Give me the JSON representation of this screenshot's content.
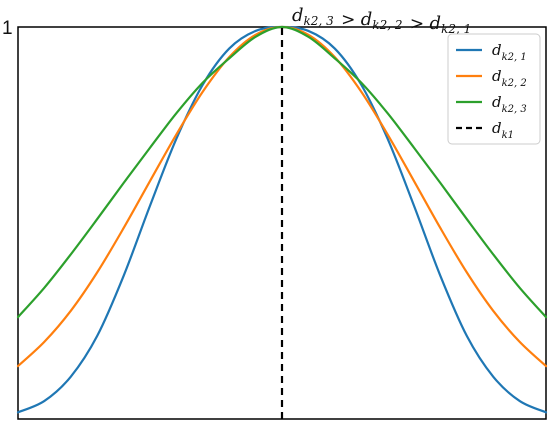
{
  "chart_data": {
    "type": "line",
    "title": "",
    "xlabel": "",
    "ylabel": "",
    "xlim": [
      -1,
      1
    ],
    "ylim": [
      0,
      1
    ],
    "x_ticks": [],
    "y_ticks": [
      {
        "value": 1,
        "label": "1"
      }
    ],
    "grid": false,
    "legend_position": "top-right",
    "annotation": {
      "parts": [
        {
          "base": "d",
          "sub": "k2, 3"
        },
        {
          "op": ">"
        },
        {
          "base": "d",
          "sub": "k2, 2"
        },
        {
          "op": ">"
        },
        {
          "base": "d",
          "sub": "k2, 1"
        }
      ]
    },
    "series": [
      {
        "name": {
          "base": "d",
          "sub": "k2, 1"
        },
        "color": "#1f77b4",
        "style": "solid",
        "x": [
          -1,
          -0.9,
          -0.8,
          -0.7,
          -0.6,
          -0.5,
          -0.4,
          -0.3,
          -0.2,
          -0.1,
          0,
          0.1,
          0.2,
          0.3,
          0.4,
          0.5,
          0.6,
          0.7,
          0.8,
          0.9,
          1
        ],
        "y": [
          0.017,
          0.046,
          0.108,
          0.212,
          0.365,
          0.544,
          0.715,
          0.853,
          0.945,
          0.99,
          1,
          0.99,
          0.945,
          0.853,
          0.715,
          0.544,
          0.365,
          0.212,
          0.108,
          0.046,
          0.017
        ]
      },
      {
        "name": {
          "base": "d",
          "sub": "k2, 2"
        },
        "color": "#ff7f0e",
        "style": "solid",
        "x": [
          -1,
          -0.9,
          -0.8,
          -0.7,
          -0.6,
          -0.5,
          -0.4,
          -0.3,
          -0.2,
          -0.1,
          0,
          0.1,
          0.2,
          0.3,
          0.4,
          0.5,
          0.6,
          0.7,
          0.8,
          0.9,
          1
        ],
        "y": [
          0.135,
          0.197,
          0.276,
          0.374,
          0.487,
          0.607,
          0.726,
          0.835,
          0.923,
          0.98,
          1,
          0.98,
          0.923,
          0.835,
          0.726,
          0.607,
          0.487,
          0.374,
          0.276,
          0.197,
          0.135
        ]
      },
      {
        "name": {
          "base": "d",
          "sub": "k2, 3"
        },
        "color": "#2ca02c",
        "style": "solid",
        "x": [
          -1,
          -0.9,
          -0.8,
          -0.7,
          -0.6,
          -0.5,
          -0.4,
          -0.3,
          -0.2,
          -0.1,
          0,
          0.1,
          0.2,
          0.3,
          0.4,
          0.5,
          0.6,
          0.7,
          0.8,
          0.9,
          1
        ],
        "y": [
          0.26,
          0.335,
          0.42,
          0.51,
          0.602,
          0.692,
          0.78,
          0.858,
          0.92,
          0.975,
          1,
          0.975,
          0.92,
          0.858,
          0.78,
          0.692,
          0.602,
          0.51,
          0.42,
          0.335,
          0.26
        ]
      },
      {
        "name": {
          "base": "d",
          "sub": "k1"
        },
        "color": "#000000",
        "style": "dashed",
        "x": [
          0,
          0
        ],
        "y": [
          0,
          1
        ]
      }
    ]
  }
}
